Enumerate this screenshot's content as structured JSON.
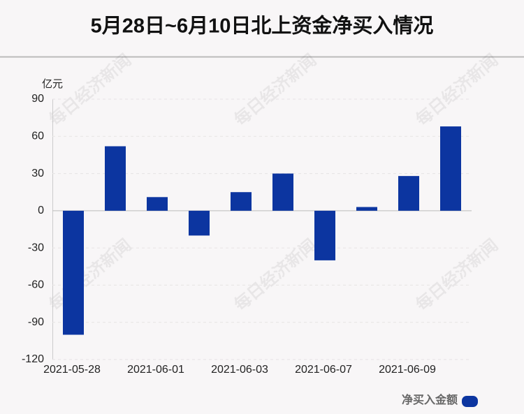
{
  "chart_data": {
    "type": "bar",
    "title": "5月28日~6月10日北上资金净买入情况",
    "y_unit": "亿元",
    "watermark": "每日经济新闻",
    "categories": [
      "2021-05-28",
      null,
      "2021-06-01",
      null,
      "2021-06-03",
      null,
      "2021-06-07",
      null,
      "2021-06-09",
      null
    ],
    "series": [
      {
        "name": "净买入金额",
        "color": "#0c35a0",
        "values": [
          -100,
          52,
          11,
          -20,
          15,
          30,
          -40,
          3,
          28,
          68
        ]
      }
    ],
    "ylim": [
      -120,
      90
    ],
    "yticks": [
      -120,
      -90,
      -60,
      -30,
      0,
      30,
      60,
      90
    ],
    "grid": true,
    "legend": "bottom-right"
  }
}
